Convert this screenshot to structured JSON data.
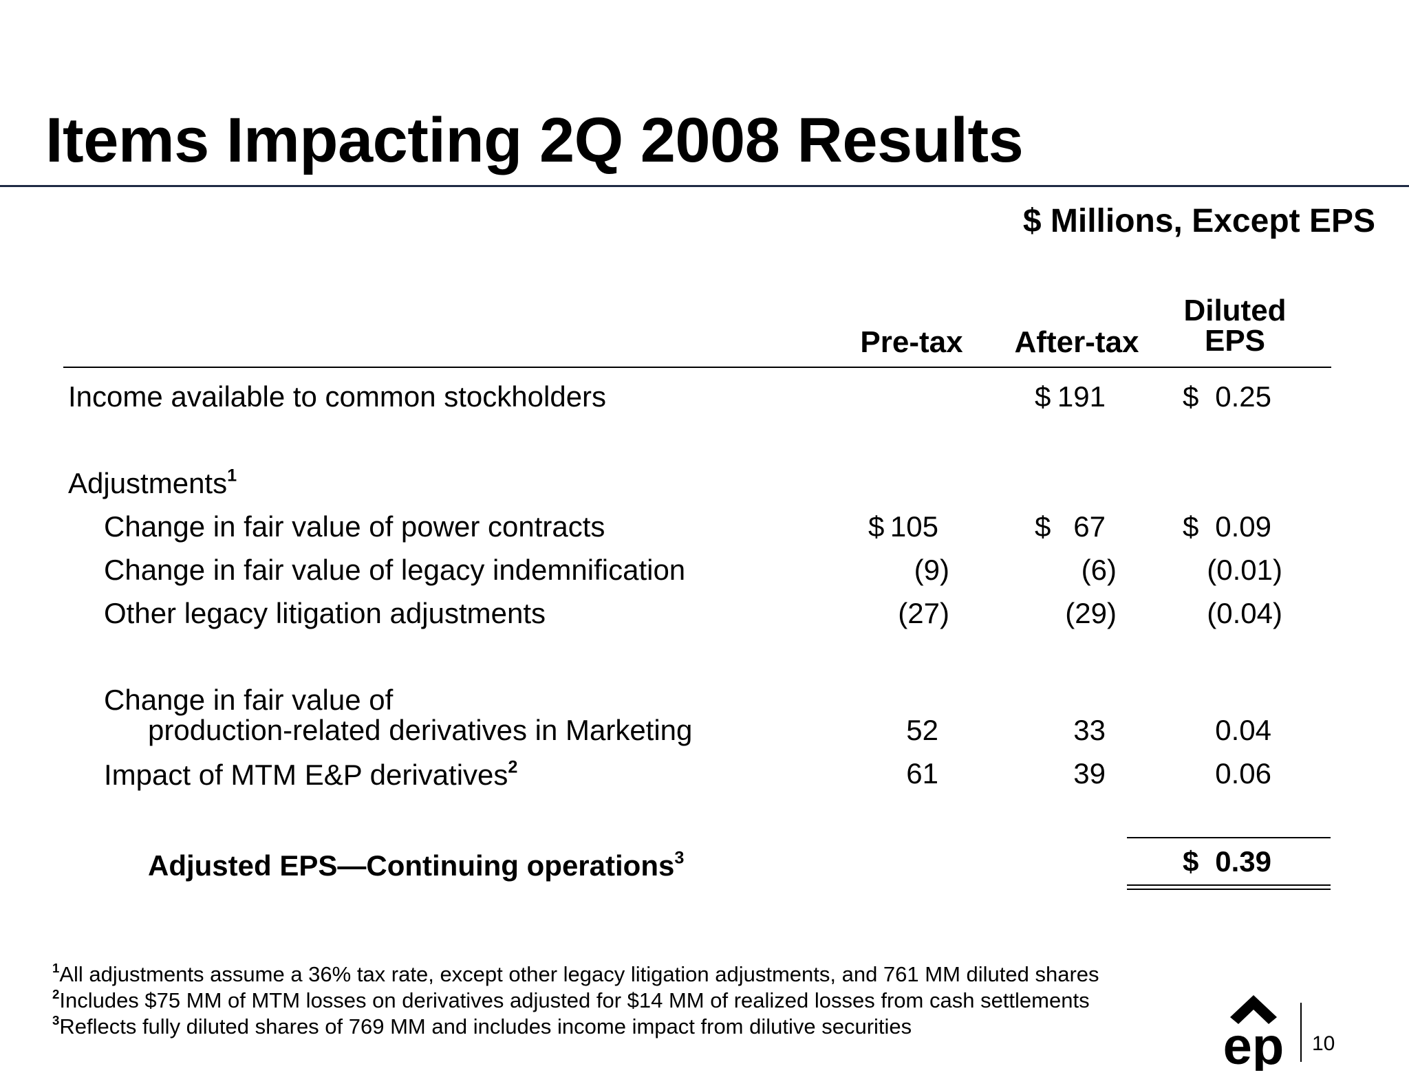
{
  "title": "Items Impacting 2Q 2008 Results",
  "units": "$ Millions, Except EPS",
  "columns": {
    "pretax": "Pre-tax",
    "aftertax": "After-tax",
    "eps_line1": "Diluted",
    "eps_line2": "EPS"
  },
  "rows": {
    "income": {
      "label": "Income available to common stockholders",
      "aftertax_sym": "$",
      "aftertax": "191",
      "eps_sym": "$",
      "eps": "0.25"
    },
    "adjustments": {
      "label": "Adjustments",
      "note": "1"
    },
    "power": {
      "label": "Change in fair value of power contracts",
      "pretax_sym": "$",
      "pretax": "105",
      "aftertax_sym": "$",
      "aftertax": "67",
      "eps_sym": "$",
      "eps": "0.09"
    },
    "legacy_indem": {
      "label": "Change in fair value of legacy indemnification",
      "pretax": "(9)",
      "aftertax": "(6)",
      "eps": "(0.01)"
    },
    "legacy_lit": {
      "label": "Other legacy litigation adjustments",
      "pretax": "(27)",
      "aftertax": "(29)",
      "eps": "(0.04)"
    },
    "production": {
      "label_line1": "Change in fair value of",
      "label_line2": "production-related derivatives in Marketing",
      "pretax": "52",
      "aftertax": "33",
      "eps": "0.04"
    },
    "mtm": {
      "label": "Impact of MTM E&P derivatives",
      "note": "2",
      "pretax": "61",
      "aftertax": "39",
      "eps": "0.06"
    },
    "adjusted": {
      "label": "Adjusted EPS—Continuing operations",
      "note": "3",
      "eps_sym": "$",
      "eps": "0.39"
    }
  },
  "footnotes": [
    {
      "num": "1",
      "text": "All adjustments assume a 36% tax rate, except other legacy litigation adjustments, and 761 MM diluted shares"
    },
    {
      "num": "2",
      "text": "Includes $75 MM of MTM losses on derivatives adjusted for $14 MM of realized losses from cash settlements"
    },
    {
      "num": "3",
      "text": "Reflects fully diluted shares of 769 MM and includes income impact from dilutive securities"
    }
  ],
  "logo": {
    "text": "ep",
    "icon": "ep-logo-icon"
  },
  "page_number": "10",
  "colors": {
    "title_rule": "#1f2a44",
    "text": "#000000"
  }
}
